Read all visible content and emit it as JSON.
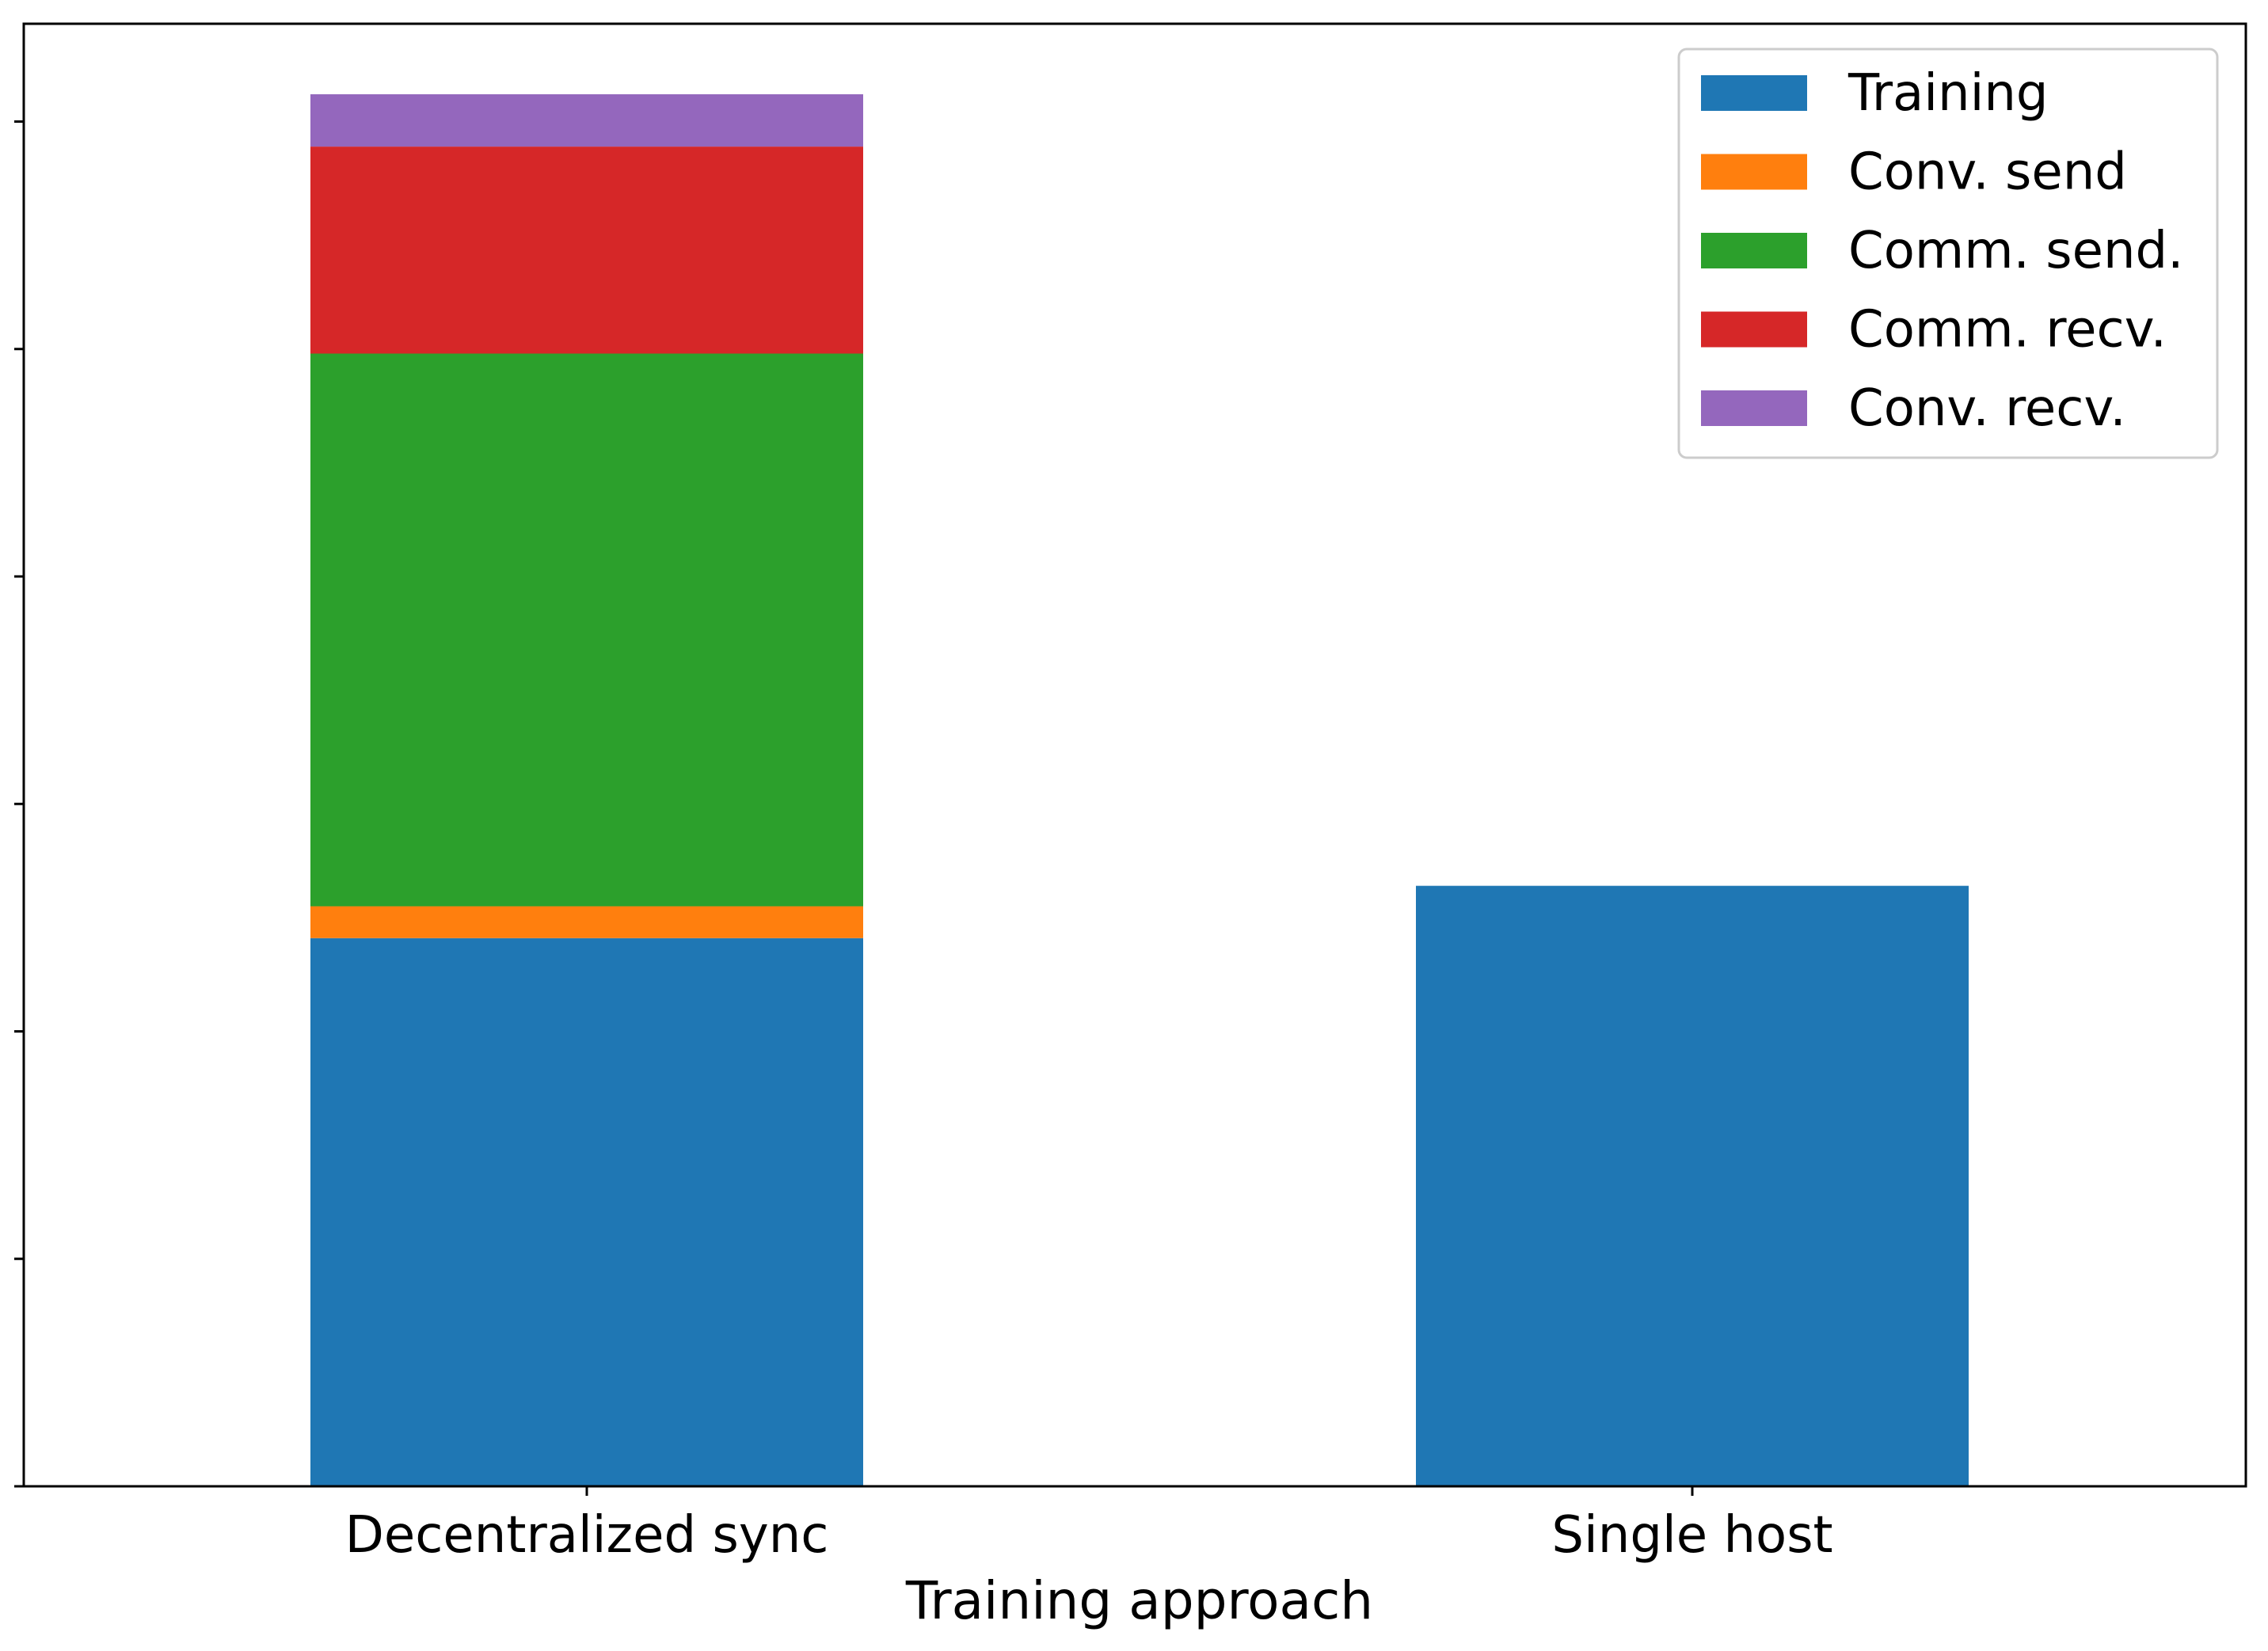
{
  "chart_data": {
    "type": "bar",
    "stacked": true,
    "categories": [
      "Decentralized sync",
      "Single host"
    ],
    "series": [
      {
        "name": "Training",
        "color": "#1f77b4",
        "values": [
          24.1,
          26.4
        ]
      },
      {
        "name": "Conv. send",
        "color": "#ff7f0e",
        "values": [
          1.4,
          0
        ]
      },
      {
        "name": "Comm. send.",
        "color": "#2ca02c",
        "values": [
          24.3,
          0
        ]
      },
      {
        "name": "Comm. recv.",
        "color": "#d62728",
        "values": [
          9.1,
          0
        ]
      },
      {
        "name": "Conv. recv.",
        "color": "#9467bd",
        "values": [
          2.3,
          0
        ]
      }
    ],
    "xlabel": "Training approach",
    "ylabel": "",
    "ylim": [
      0,
      64.3
    ],
    "yticks": [
      0,
      10,
      20,
      30,
      40,
      50,
      60
    ],
    "ytick_labels_visible": false,
    "grid": false,
    "legend": "top-right"
  }
}
